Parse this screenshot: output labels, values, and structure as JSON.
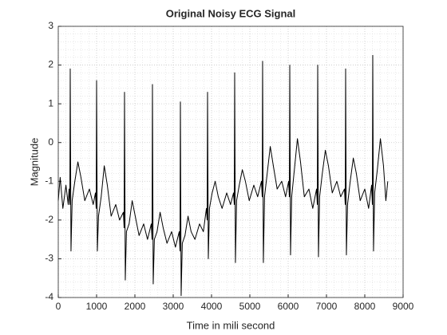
{
  "chart_data": {
    "type": "line",
    "title": "Original Noisy ECG Signal",
    "x_label": "Time in mili second",
    "y_label": "Magnitude",
    "xlim": [
      0,
      9000
    ],
    "xticks": [
      0,
      1000,
      2000,
      3000,
      4000,
      5000,
      6000,
      7000,
      8000,
      9000
    ],
    "ylim": [
      -4,
      3
    ],
    "yticks": [
      -4,
      -3,
      -2,
      -1,
      0,
      1,
      2,
      3
    ],
    "grid": true,
    "minor_grid": true,
    "series": [
      {
        "color": "#000000",
        "x": [
          0,
          50,
          120,
          200,
          260,
          282,
          302,
          312,
          332,
          362,
          432,
          512,
          592,
          692,
          812,
          912,
          970,
          990,
          1000,
          1020,
          1050,
          1120,
          1200,
          1280,
          1380,
          1500,
          1600,
          1699,
          1719,
          1729,
          1749,
          1779,
          1849,
          1929,
          2009,
          2109,
          2229,
          2329,
          2428,
          2448,
          2458,
          2478,
          2508,
          2578,
          2658,
          2738,
          2838,
          2958,
          3058,
          3157,
          3177,
          3187,
          3207,
          3237,
          3307,
          3387,
          3467,
          3567,
          3687,
          3787,
          3866,
          3886,
          3896,
          3916,
          3946,
          4016,
          4096,
          4176,
          4276,
          4396,
          4496,
          4574,
          4594,
          4604,
          4624,
          4654,
          4724,
          4804,
          4884,
          4984,
          5104,
          5204,
          5303,
          5323,
          5333,
          5353,
          5383,
          5453,
          5533,
          5613,
          5713,
          5833,
          5933,
          6012,
          6032,
          6042,
          6062,
          6092,
          6162,
          6242,
          6322,
          6422,
          6542,
          6642,
          6741,
          6761,
          6771,
          6791,
          6821,
          6891,
          6971,
          7051,
          7151,
          7271,
          7371,
          7470,
          7490,
          7500,
          7520,
          7550,
          7620,
          7700,
          7780,
          7880,
          8000,
          8100,
          8178,
          8198,
          8208,
          8228,
          8258,
          8328,
          8408,
          8488,
          8550,
          8600
        ],
        "values": [
          -1.5,
          -0.9,
          -1.7,
          -1.1,
          -1.6,
          -1.2,
          -1.6,
          1.9,
          -2.8,
          -1.5,
          -1.0,
          -0.5,
          -0.9,
          -1.5,
          -1.2,
          -1.6,
          -1.3,
          -1.7,
          1.6,
          -2.8,
          -1.9,
          -1.4,
          -0.6,
          -1.1,
          -1.9,
          -1.6,
          -2.0,
          -1.8,
          -2.2,
          1.3,
          -3.55,
          -2.3,
          -2.1,
          -1.5,
          -1.9,
          -2.4,
          -2.1,
          -2.5,
          -2.1,
          -2.5,
          1.5,
          -3.65,
          -2.5,
          -2.3,
          -1.8,
          -2.2,
          -2.6,
          -2.3,
          -2.7,
          -2.3,
          -2.8,
          1.05,
          -3.95,
          -2.6,
          -2.4,
          -1.9,
          -2.3,
          -2.5,
          -2.1,
          -2.3,
          -1.7,
          -2.0,
          1.3,
          -3.0,
          -1.7,
          -1.3,
          -1.0,
          -1.4,
          -1.7,
          -1.3,
          -1.6,
          -1.3,
          -1.6,
          1.8,
          -3.1,
          -1.5,
          -1.1,
          -0.7,
          -1.0,
          -1.5,
          -1.1,
          -1.4,
          -1.0,
          -1.4,
          2.1,
          -3.1,
          -1.4,
          -0.8,
          -0.1,
          -0.6,
          -1.2,
          -1.0,
          -1.4,
          -1.0,
          -1.4,
          2.0,
          -2.9,
          -1.4,
          -0.7,
          0.1,
          -0.5,
          -1.4,
          -1.2,
          -1.7,
          -1.2,
          -1.6,
          2.0,
          -2.95,
          -1.4,
          -0.8,
          -0.2,
          -0.6,
          -1.3,
          -1.0,
          -1.4,
          -1.2,
          -1.6,
          1.9,
          -2.9,
          -1.6,
          -1.0,
          -0.4,
          -0.8,
          -1.5,
          -1.2,
          -1.7,
          -1.1,
          -1.6,
          2.25,
          -2.8,
          -1.3,
          -0.7,
          0.1,
          -0.6,
          -1.5,
          -1.0
        ]
      }
    ]
  }
}
